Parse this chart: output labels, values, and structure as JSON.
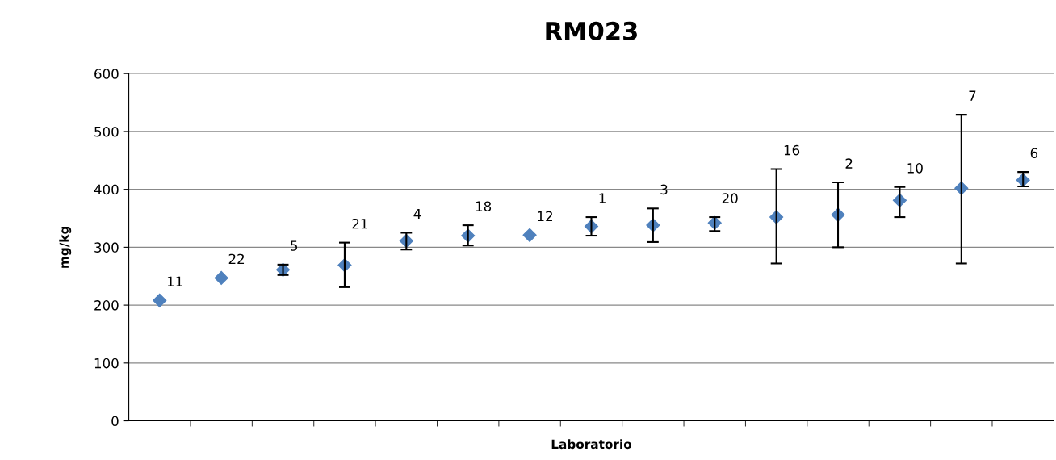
{
  "chart_data": {
    "type": "scatter",
    "title": "RM023",
    "xlabel": "Laboratorio",
    "ylabel": "mg/kg",
    "categories": [
      null,
      null,
      null,
      null,
      null,
      null,
      null,
      null,
      null,
      null,
      null,
      null,
      null,
      null,
      null
    ],
    "series": [
      {
        "color": "#4f81bd",
        "values": [
          208,
          247,
          261,
          269,
          311,
          320,
          321,
          336,
          338,
          342,
          352,
          356,
          381,
          402,
          416
        ],
        "errors": [
          null,
          null,
          [
            252,
            270
          ],
          [
            231,
            308
          ],
          [
            296,
            325
          ],
          [
            303,
            338
          ],
          null,
          [
            320,
            352
          ],
          [
            309,
            367
          ],
          [
            328,
            352
          ],
          [
            272,
            435
          ],
          [
            300,
            412
          ],
          [
            352,
            404
          ],
          [
            272,
            529
          ],
          [
            405,
            430
          ]
        ]
      }
    ],
    "annotations": [
      "11",
      "22",
      "5",
      "21",
      "4",
      "18",
      "12",
      "1",
      "3",
      "20",
      "16",
      "2",
      "10",
      "7",
      "6"
    ],
    "ylim": [
      0,
      600
    ],
    "yticks": [
      0,
      100,
      200,
      300,
      400,
      500,
      600
    ],
    "grid": "y",
    "marker": "diamond",
    "legend": false
  }
}
